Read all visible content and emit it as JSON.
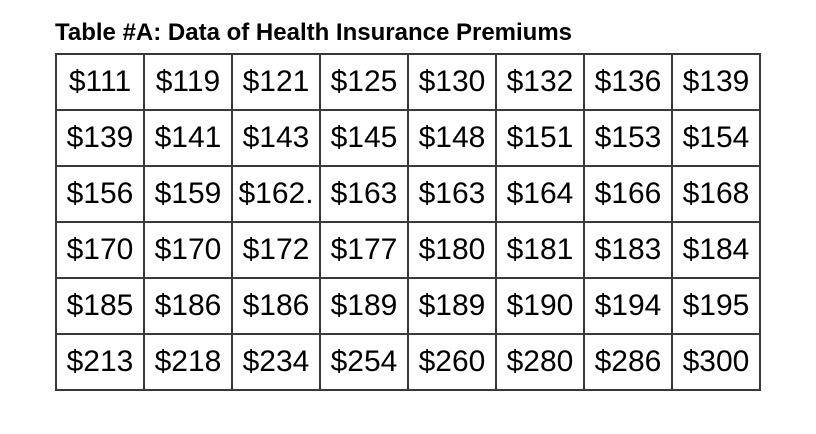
{
  "page": {
    "background_color": "#ffffff",
    "text_color": "#000000",
    "border_color": "#383838"
  },
  "title": "Table #A: Data of Health Insurance Premiums",
  "table": {
    "columns": 8,
    "rows": [
      [
        "$111",
        "$119",
        "$121",
        "$125",
        "$130",
        "$132",
        "$136",
        "$139"
      ],
      [
        "$139",
        "$141",
        "$143",
        "$145",
        "$148",
        "$151",
        "$153",
        "$154"
      ],
      [
        "$156",
        "$159",
        "$162.",
        "$163",
        "$163",
        "$164",
        "$166",
        "$168"
      ],
      [
        "$170",
        "$170",
        "$172",
        "$177",
        "$180",
        "$181",
        "$183",
        "$184"
      ],
      [
        "$185",
        "$186",
        "$186",
        "$189",
        "$189",
        "$190",
        "$194",
        "$195"
      ],
      [
        "$213",
        "$218",
        "$234",
        "$254",
        "$260",
        "$280",
        "$286",
        "$300"
      ]
    ]
  },
  "chart_data": {
    "type": "table",
    "title": "Table #A: Data of Health Insurance Premiums",
    "values": [
      [
        111,
        119,
        121,
        125,
        130,
        132,
        136,
        139
      ],
      [
        139,
        141,
        143,
        145,
        148,
        151,
        153,
        154
      ],
      [
        156,
        159,
        162,
        163,
        163,
        164,
        166,
        168
      ],
      [
        170,
        170,
        172,
        177,
        180,
        181,
        183,
        184
      ],
      [
        185,
        186,
        186,
        189,
        189,
        190,
        194,
        195
      ],
      [
        213,
        218,
        234,
        254,
        260,
        280,
        286,
        300
      ]
    ],
    "unit": "USD"
  }
}
